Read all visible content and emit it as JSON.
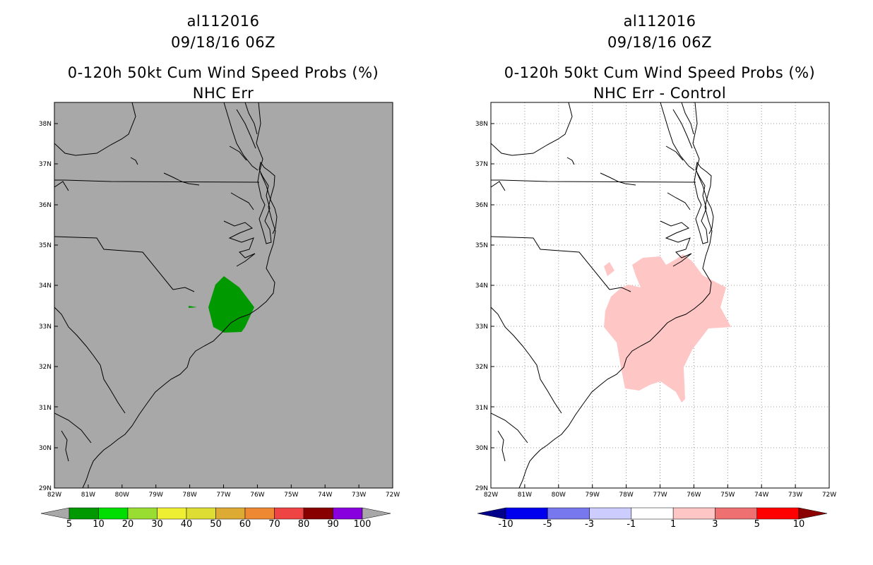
{
  "left_panel": {
    "storm_id": "al112016",
    "datetime": "09/18/16 06Z",
    "product": "0-120h 50kt Cum Wind Speed Probs (%)",
    "subtitle": "NHC Err",
    "background_color": "#a8a8a8",
    "shading_color": "#009900",
    "colorbar": {
      "labels": [
        "5",
        "10",
        "20",
        "30",
        "40",
        "50",
        "60",
        "70",
        "80",
        "90",
        "100"
      ],
      "colors": [
        "#009900",
        "#00dd00",
        "#99dd33",
        "#eeee33",
        "#dddd33",
        "#ddaa33",
        "#ee8833",
        "#ee4444",
        "#880000",
        "#8800dd"
      ],
      "under_color": "#a8a8a8",
      "over_color": "#a8a8a8"
    }
  },
  "right_panel": {
    "storm_id": "al112016",
    "datetime": "09/18/16 06Z",
    "product": "0-120h 50kt Cum Wind Speed Probs (%)",
    "subtitle": "NHC Err - Control",
    "background_color": "#ffffff",
    "shading_color": "#ffc6c6",
    "colorbar": {
      "labels": [
        "-10",
        "-5",
        "-3",
        "-1",
        "1",
        "3",
        "5",
        "10"
      ],
      "colors": [
        "#0000ee",
        "#7777ee",
        "#ccccff",
        "#ffffff",
        "#ffc6c6",
        "#ee7070",
        "#ff0000"
      ],
      "under_color": "#00008b",
      "over_color": "#8b0000"
    }
  },
  "axes": {
    "lat_labels": [
      "29N",
      "30N",
      "31N",
      "32N",
      "33N",
      "34N",
      "35N",
      "36N",
      "37N",
      "38N"
    ],
    "lon_labels": [
      "82W",
      "81W",
      "80W",
      "79W",
      "78W",
      "77W",
      "76W",
      "75W",
      "74W",
      "73W",
      "72W"
    ]
  }
}
